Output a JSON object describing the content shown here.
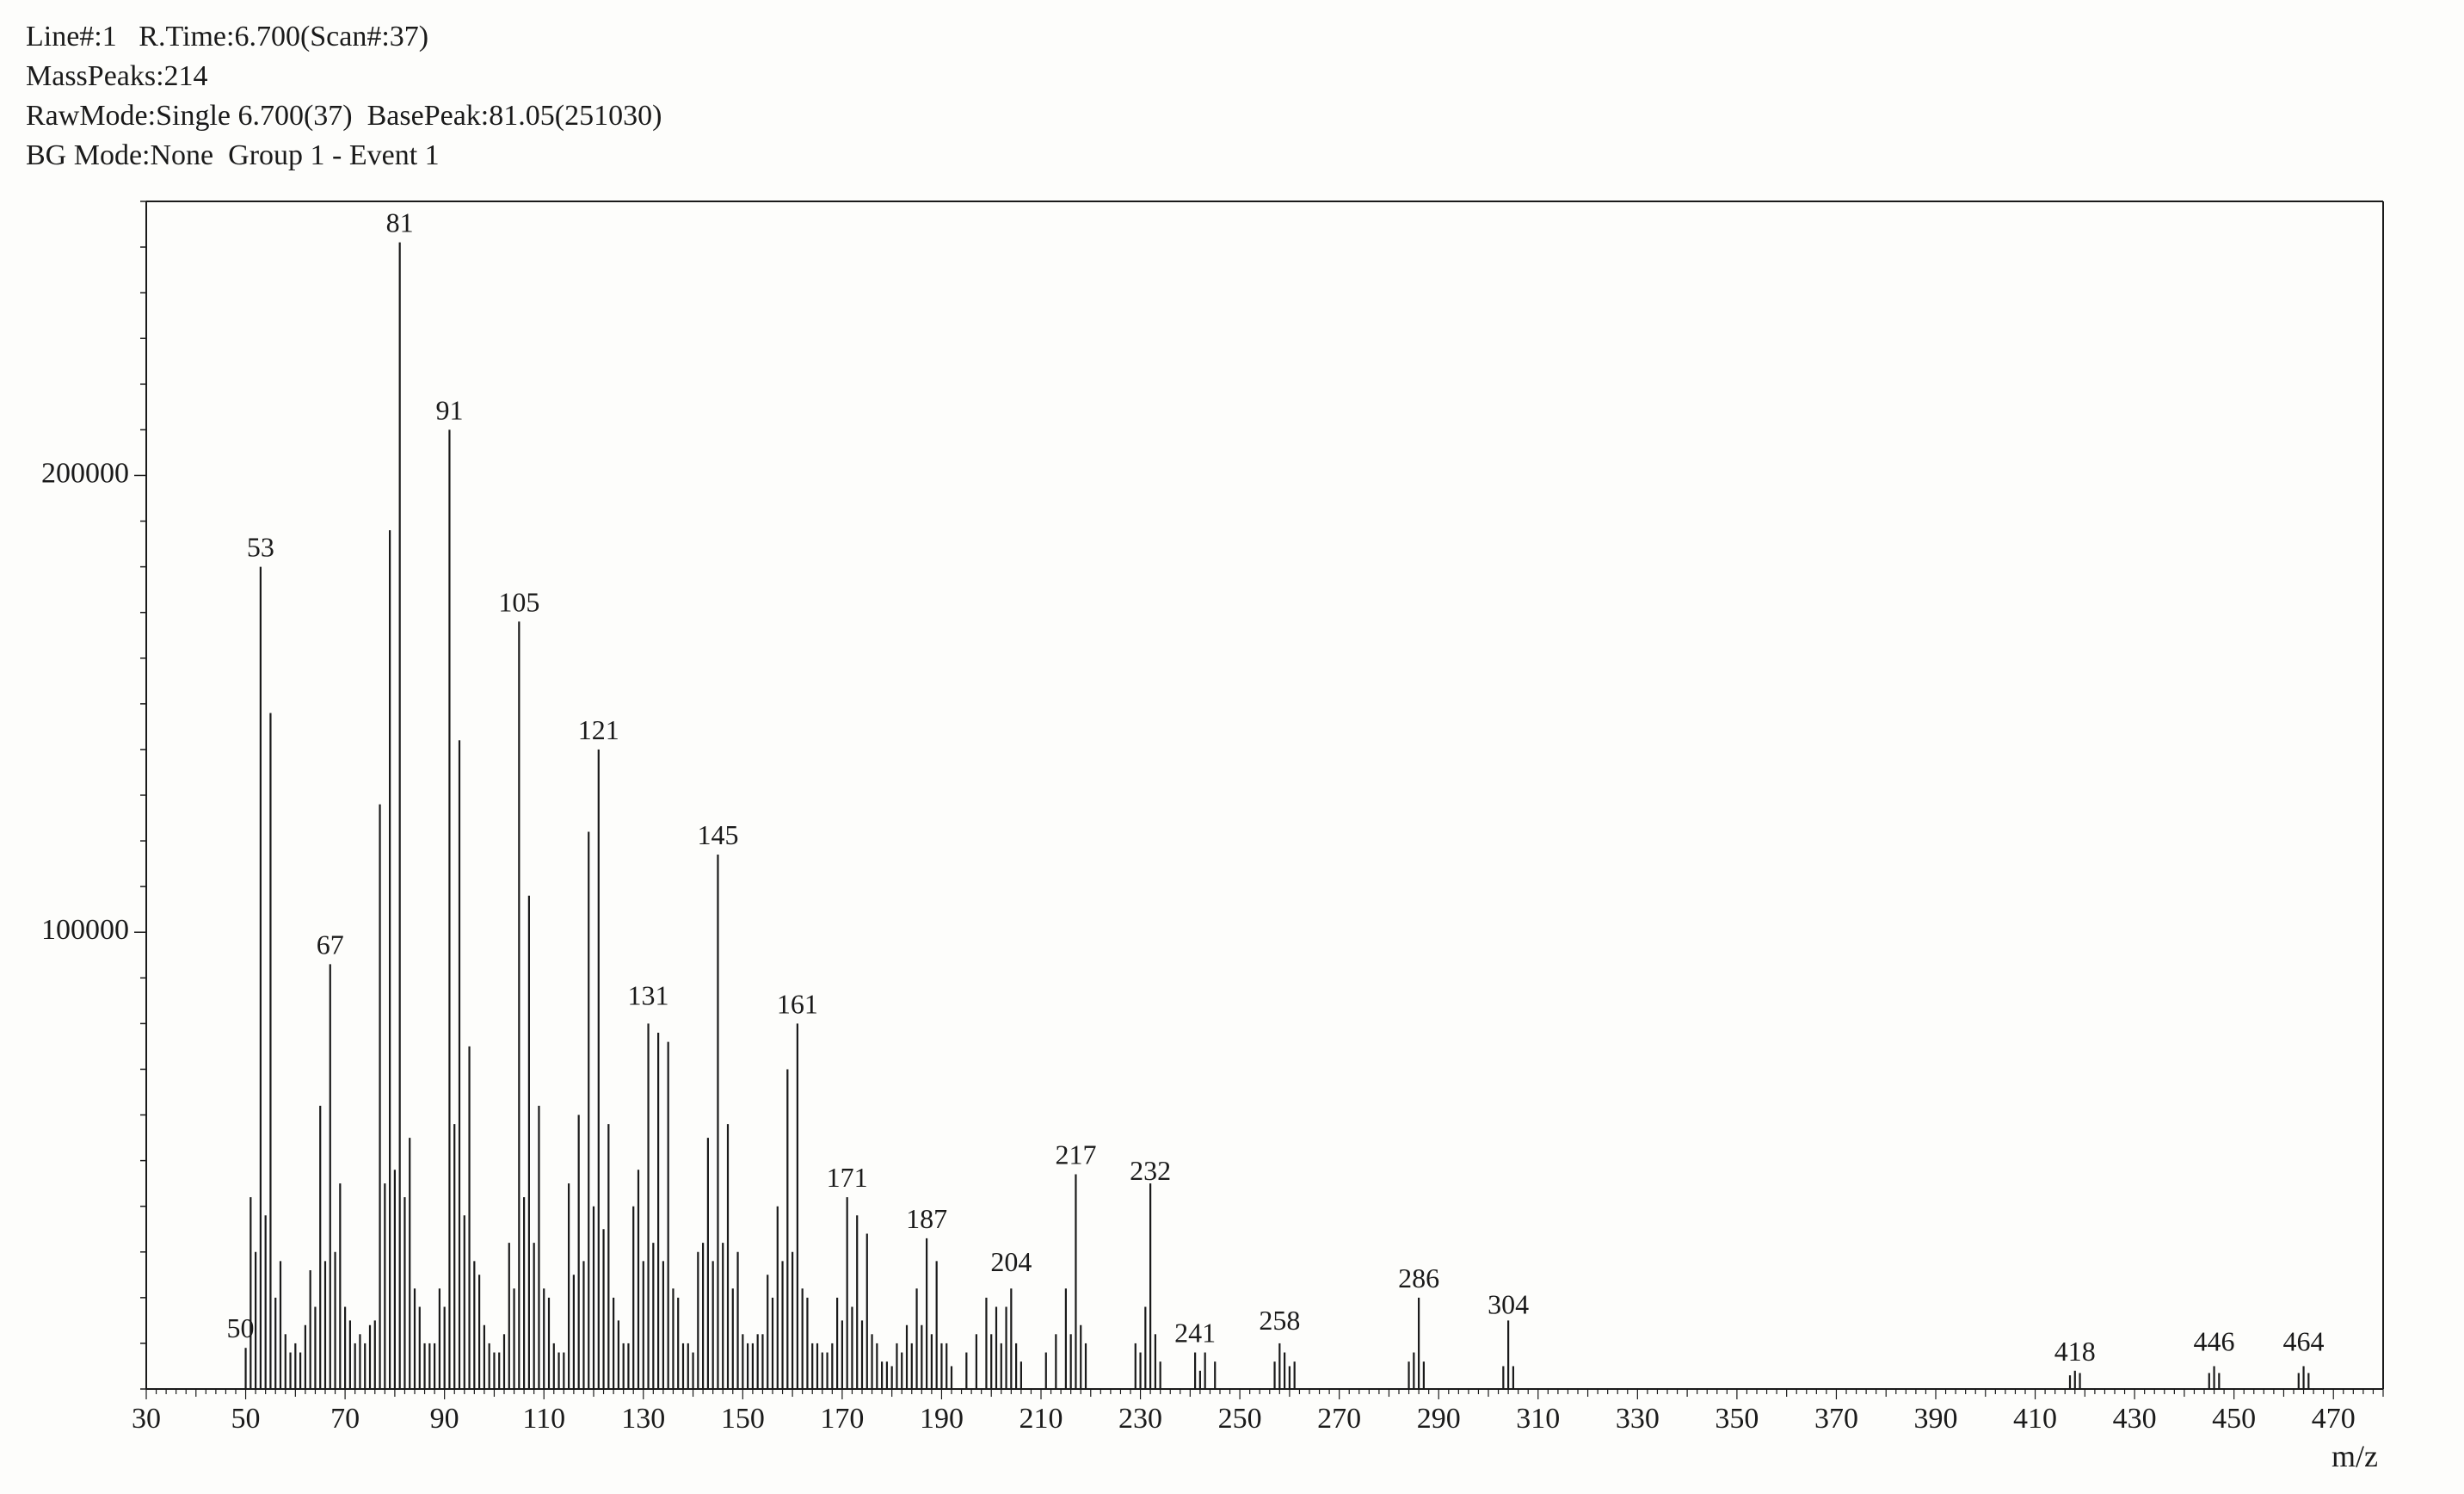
{
  "header": {
    "line1a": "Line#:1",
    "line1b": "R.Time:6.700(Scan#:37)",
    "line2": "MassPeaks:214",
    "line3": "RawMode:Single 6.700(37)  BasePeak:81.05(251030)",
    "line4": "BG Mode:None  Group 1 - Event 1"
  },
  "chart": {
    "type": "mass-spectrum",
    "background_color": "#fdfdfb",
    "frame_color": "#1a1a1a",
    "bar_color": "#1a1a1a",
    "label_color": "#1a1a1a",
    "axis_font_size": 34,
    "peak_label_font_size": 32,
    "xaxis": {
      "title": "m/z",
      "min": 30,
      "max": 480,
      "major_ticks": [
        30,
        50,
        70,
        90,
        110,
        130,
        150,
        170,
        190,
        210,
        230,
        250,
        270,
        290,
        310,
        330,
        350,
        370,
        390,
        410,
        430,
        450,
        470
      ],
      "minor_step": 2,
      "major_tick_len": 12,
      "minor_tick_len": 6
    },
    "yaxis": {
      "min": 0,
      "max": 260000,
      "major_ticks": [
        100000,
        200000
      ],
      "major_tick_len": 14,
      "minor_step": 10000,
      "minor_tick_len": 7
    },
    "peaks_labeled": [
      {
        "mz": 50,
        "intensity": 9000,
        "label": "50",
        "label_dy": 0,
        "label_dx": -6
      },
      {
        "mz": 53,
        "intensity": 180000,
        "label": "53"
      },
      {
        "mz": 67,
        "intensity": 93000,
        "label": "67"
      },
      {
        "mz": 81,
        "intensity": 251030,
        "label": "81"
      },
      {
        "mz": 91,
        "intensity": 210000,
        "label": "91"
      },
      {
        "mz": 105,
        "intensity": 168000,
        "label": "105"
      },
      {
        "mz": 121,
        "intensity": 140000,
        "label": "121"
      },
      {
        "mz": 131,
        "intensity": 80000,
        "label": "131",
        "label_dy": -10
      },
      {
        "mz": 145,
        "intensity": 117000,
        "label": "145"
      },
      {
        "mz": 161,
        "intensity": 80000,
        "label": "161"
      },
      {
        "mz": 171,
        "intensity": 42000,
        "label": "171"
      },
      {
        "mz": 187,
        "intensity": 33000,
        "label": "187"
      },
      {
        "mz": 204,
        "intensity": 22000,
        "label": "204",
        "label_dy": -8
      },
      {
        "mz": 217,
        "intensity": 47000,
        "label": "217"
      },
      {
        "mz": 232,
        "intensity": 45000,
        "label": "232",
        "label_dy": 8
      },
      {
        "mz": 241,
        "intensity": 8000,
        "label": "241"
      },
      {
        "mz": 258,
        "intensity": 10000,
        "label": "258",
        "label_dy": -4
      },
      {
        "mz": 286,
        "intensity": 20000,
        "label": "286"
      },
      {
        "mz": 304,
        "intensity": 15000,
        "label": "304",
        "label_dy": 4
      },
      {
        "mz": 418,
        "intensity": 4000,
        "label": "418"
      },
      {
        "mz": 446,
        "intensity": 5000,
        "label": "446",
        "label_dy": -6
      },
      {
        "mz": 464,
        "intensity": 5000,
        "label": "464",
        "label_dy": -6
      }
    ],
    "peaks_unlabeled": [
      {
        "mz": 51,
        "intensity": 42000
      },
      {
        "mz": 52,
        "intensity": 30000
      },
      {
        "mz": 54,
        "intensity": 38000
      },
      {
        "mz": 55,
        "intensity": 148000
      },
      {
        "mz": 56,
        "intensity": 20000
      },
      {
        "mz": 57,
        "intensity": 28000
      },
      {
        "mz": 58,
        "intensity": 12000
      },
      {
        "mz": 59,
        "intensity": 8000
      },
      {
        "mz": 60,
        "intensity": 10000
      },
      {
        "mz": 61,
        "intensity": 8000
      },
      {
        "mz": 62,
        "intensity": 14000
      },
      {
        "mz": 63,
        "intensity": 26000
      },
      {
        "mz": 64,
        "intensity": 18000
      },
      {
        "mz": 65,
        "intensity": 62000
      },
      {
        "mz": 66,
        "intensity": 28000
      },
      {
        "mz": 68,
        "intensity": 30000
      },
      {
        "mz": 69,
        "intensity": 45000
      },
      {
        "mz": 70,
        "intensity": 18000
      },
      {
        "mz": 71,
        "intensity": 15000
      },
      {
        "mz": 72,
        "intensity": 10000
      },
      {
        "mz": 73,
        "intensity": 12000
      },
      {
        "mz": 74,
        "intensity": 10000
      },
      {
        "mz": 75,
        "intensity": 14000
      },
      {
        "mz": 76,
        "intensity": 15000
      },
      {
        "mz": 77,
        "intensity": 128000
      },
      {
        "mz": 78,
        "intensity": 45000
      },
      {
        "mz": 79,
        "intensity": 188000
      },
      {
        "mz": 80,
        "intensity": 48000
      },
      {
        "mz": 82,
        "intensity": 42000
      },
      {
        "mz": 83,
        "intensity": 55000
      },
      {
        "mz": 84,
        "intensity": 22000
      },
      {
        "mz": 85,
        "intensity": 18000
      },
      {
        "mz": 86,
        "intensity": 10000
      },
      {
        "mz": 87,
        "intensity": 10000
      },
      {
        "mz": 88,
        "intensity": 10000
      },
      {
        "mz": 89,
        "intensity": 22000
      },
      {
        "mz": 90,
        "intensity": 18000
      },
      {
        "mz": 92,
        "intensity": 58000
      },
      {
        "mz": 93,
        "intensity": 142000
      },
      {
        "mz": 94,
        "intensity": 38000
      },
      {
        "mz": 95,
        "intensity": 75000
      },
      {
        "mz": 96,
        "intensity": 28000
      },
      {
        "mz": 97,
        "intensity": 25000
      },
      {
        "mz": 98,
        "intensity": 14000
      },
      {
        "mz": 99,
        "intensity": 10000
      },
      {
        "mz": 100,
        "intensity": 8000
      },
      {
        "mz": 101,
        "intensity": 8000
      },
      {
        "mz": 102,
        "intensity": 12000
      },
      {
        "mz": 103,
        "intensity": 32000
      },
      {
        "mz": 104,
        "intensity": 22000
      },
      {
        "mz": 106,
        "intensity": 42000
      },
      {
        "mz": 107,
        "intensity": 108000
      },
      {
        "mz": 108,
        "intensity": 32000
      },
      {
        "mz": 109,
        "intensity": 62000
      },
      {
        "mz": 110,
        "intensity": 22000
      },
      {
        "mz": 111,
        "intensity": 20000
      },
      {
        "mz": 112,
        "intensity": 10000
      },
      {
        "mz": 113,
        "intensity": 8000
      },
      {
        "mz": 114,
        "intensity": 8000
      },
      {
        "mz": 115,
        "intensity": 45000
      },
      {
        "mz": 116,
        "intensity": 25000
      },
      {
        "mz": 117,
        "intensity": 60000
      },
      {
        "mz": 118,
        "intensity": 28000
      },
      {
        "mz": 119,
        "intensity": 122000
      },
      {
        "mz": 120,
        "intensity": 40000
      },
      {
        "mz": 122,
        "intensity": 35000
      },
      {
        "mz": 123,
        "intensity": 58000
      },
      {
        "mz": 124,
        "intensity": 20000
      },
      {
        "mz": 125,
        "intensity": 15000
      },
      {
        "mz": 126,
        "intensity": 10000
      },
      {
        "mz": 127,
        "intensity": 10000
      },
      {
        "mz": 128,
        "intensity": 40000
      },
      {
        "mz": 129,
        "intensity": 48000
      },
      {
        "mz": 130,
        "intensity": 28000
      },
      {
        "mz": 132,
        "intensity": 32000
      },
      {
        "mz": 133,
        "intensity": 78000
      },
      {
        "mz": 134,
        "intensity": 28000
      },
      {
        "mz": 135,
        "intensity": 76000
      },
      {
        "mz": 136,
        "intensity": 22000
      },
      {
        "mz": 137,
        "intensity": 20000
      },
      {
        "mz": 138,
        "intensity": 10000
      },
      {
        "mz": 139,
        "intensity": 10000
      },
      {
        "mz": 140,
        "intensity": 8000
      },
      {
        "mz": 141,
        "intensity": 30000
      },
      {
        "mz": 142,
        "intensity": 32000
      },
      {
        "mz": 143,
        "intensity": 55000
      },
      {
        "mz": 144,
        "intensity": 28000
      },
      {
        "mz": 146,
        "intensity": 32000
      },
      {
        "mz": 147,
        "intensity": 58000
      },
      {
        "mz": 148,
        "intensity": 22000
      },
      {
        "mz": 149,
        "intensity": 30000
      },
      {
        "mz": 150,
        "intensity": 12000
      },
      {
        "mz": 151,
        "intensity": 10000
      },
      {
        "mz": 152,
        "intensity": 10000
      },
      {
        "mz": 153,
        "intensity": 12000
      },
      {
        "mz": 154,
        "intensity": 12000
      },
      {
        "mz": 155,
        "intensity": 25000
      },
      {
        "mz": 156,
        "intensity": 20000
      },
      {
        "mz": 157,
        "intensity": 40000
      },
      {
        "mz": 158,
        "intensity": 28000
      },
      {
        "mz": 159,
        "intensity": 70000
      },
      {
        "mz": 160,
        "intensity": 30000
      },
      {
        "mz": 162,
        "intensity": 22000
      },
      {
        "mz": 163,
        "intensity": 20000
      },
      {
        "mz": 164,
        "intensity": 10000
      },
      {
        "mz": 165,
        "intensity": 10000
      },
      {
        "mz": 166,
        "intensity": 8000
      },
      {
        "mz": 167,
        "intensity": 8000
      },
      {
        "mz": 168,
        "intensity": 10000
      },
      {
        "mz": 169,
        "intensity": 20000
      },
      {
        "mz": 170,
        "intensity": 15000
      },
      {
        "mz": 172,
        "intensity": 18000
      },
      {
        "mz": 173,
        "intensity": 38000
      },
      {
        "mz": 174,
        "intensity": 15000
      },
      {
        "mz": 175,
        "intensity": 34000
      },
      {
        "mz": 176,
        "intensity": 12000
      },
      {
        "mz": 177,
        "intensity": 10000
      },
      {
        "mz": 178,
        "intensity": 6000
      },
      {
        "mz": 179,
        "intensity": 6000
      },
      {
        "mz": 180,
        "intensity": 5000
      },
      {
        "mz": 181,
        "intensity": 10000
      },
      {
        "mz": 182,
        "intensity": 8000
      },
      {
        "mz": 183,
        "intensity": 14000
      },
      {
        "mz": 184,
        "intensity": 10000
      },
      {
        "mz": 185,
        "intensity": 22000
      },
      {
        "mz": 186,
        "intensity": 14000
      },
      {
        "mz": 188,
        "intensity": 12000
      },
      {
        "mz": 189,
        "intensity": 28000
      },
      {
        "mz": 190,
        "intensity": 10000
      },
      {
        "mz": 191,
        "intensity": 10000
      },
      {
        "mz": 192,
        "intensity": 5000
      },
      {
        "mz": 195,
        "intensity": 8000
      },
      {
        "mz": 197,
        "intensity": 12000
      },
      {
        "mz": 199,
        "intensity": 20000
      },
      {
        "mz": 200,
        "intensity": 12000
      },
      {
        "mz": 201,
        "intensity": 18000
      },
      {
        "mz": 202,
        "intensity": 10000
      },
      {
        "mz": 203,
        "intensity": 18000
      },
      {
        "mz": 205,
        "intensity": 10000
      },
      {
        "mz": 206,
        "intensity": 6000
      },
      {
        "mz": 211,
        "intensity": 8000
      },
      {
        "mz": 213,
        "intensity": 12000
      },
      {
        "mz": 215,
        "intensity": 22000
      },
      {
        "mz": 216,
        "intensity": 12000
      },
      {
        "mz": 218,
        "intensity": 14000
      },
      {
        "mz": 219,
        "intensity": 10000
      },
      {
        "mz": 229,
        "intensity": 10000
      },
      {
        "mz": 230,
        "intensity": 8000
      },
      {
        "mz": 231,
        "intensity": 18000
      },
      {
        "mz": 233,
        "intensity": 12000
      },
      {
        "mz": 234,
        "intensity": 6000
      },
      {
        "mz": 242,
        "intensity": 4000
      },
      {
        "mz": 243,
        "intensity": 8000
      },
      {
        "mz": 245,
        "intensity": 6000
      },
      {
        "mz": 257,
        "intensity": 6000
      },
      {
        "mz": 259,
        "intensity": 8000
      },
      {
        "mz": 260,
        "intensity": 5000
      },
      {
        "mz": 261,
        "intensity": 6000
      },
      {
        "mz": 284,
        "intensity": 6000
      },
      {
        "mz": 285,
        "intensity": 8000
      },
      {
        "mz": 287,
        "intensity": 6000
      },
      {
        "mz": 303,
        "intensity": 5000
      },
      {
        "mz": 305,
        "intensity": 5000
      },
      {
        "mz": 417,
        "intensity": 3000
      },
      {
        "mz": 419,
        "intensity": 3500
      },
      {
        "mz": 445,
        "intensity": 3500
      },
      {
        "mz": 447,
        "intensity": 3500
      },
      {
        "mz": 463,
        "intensity": 3500
      },
      {
        "mz": 465,
        "intensity": 3500
      }
    ]
  }
}
